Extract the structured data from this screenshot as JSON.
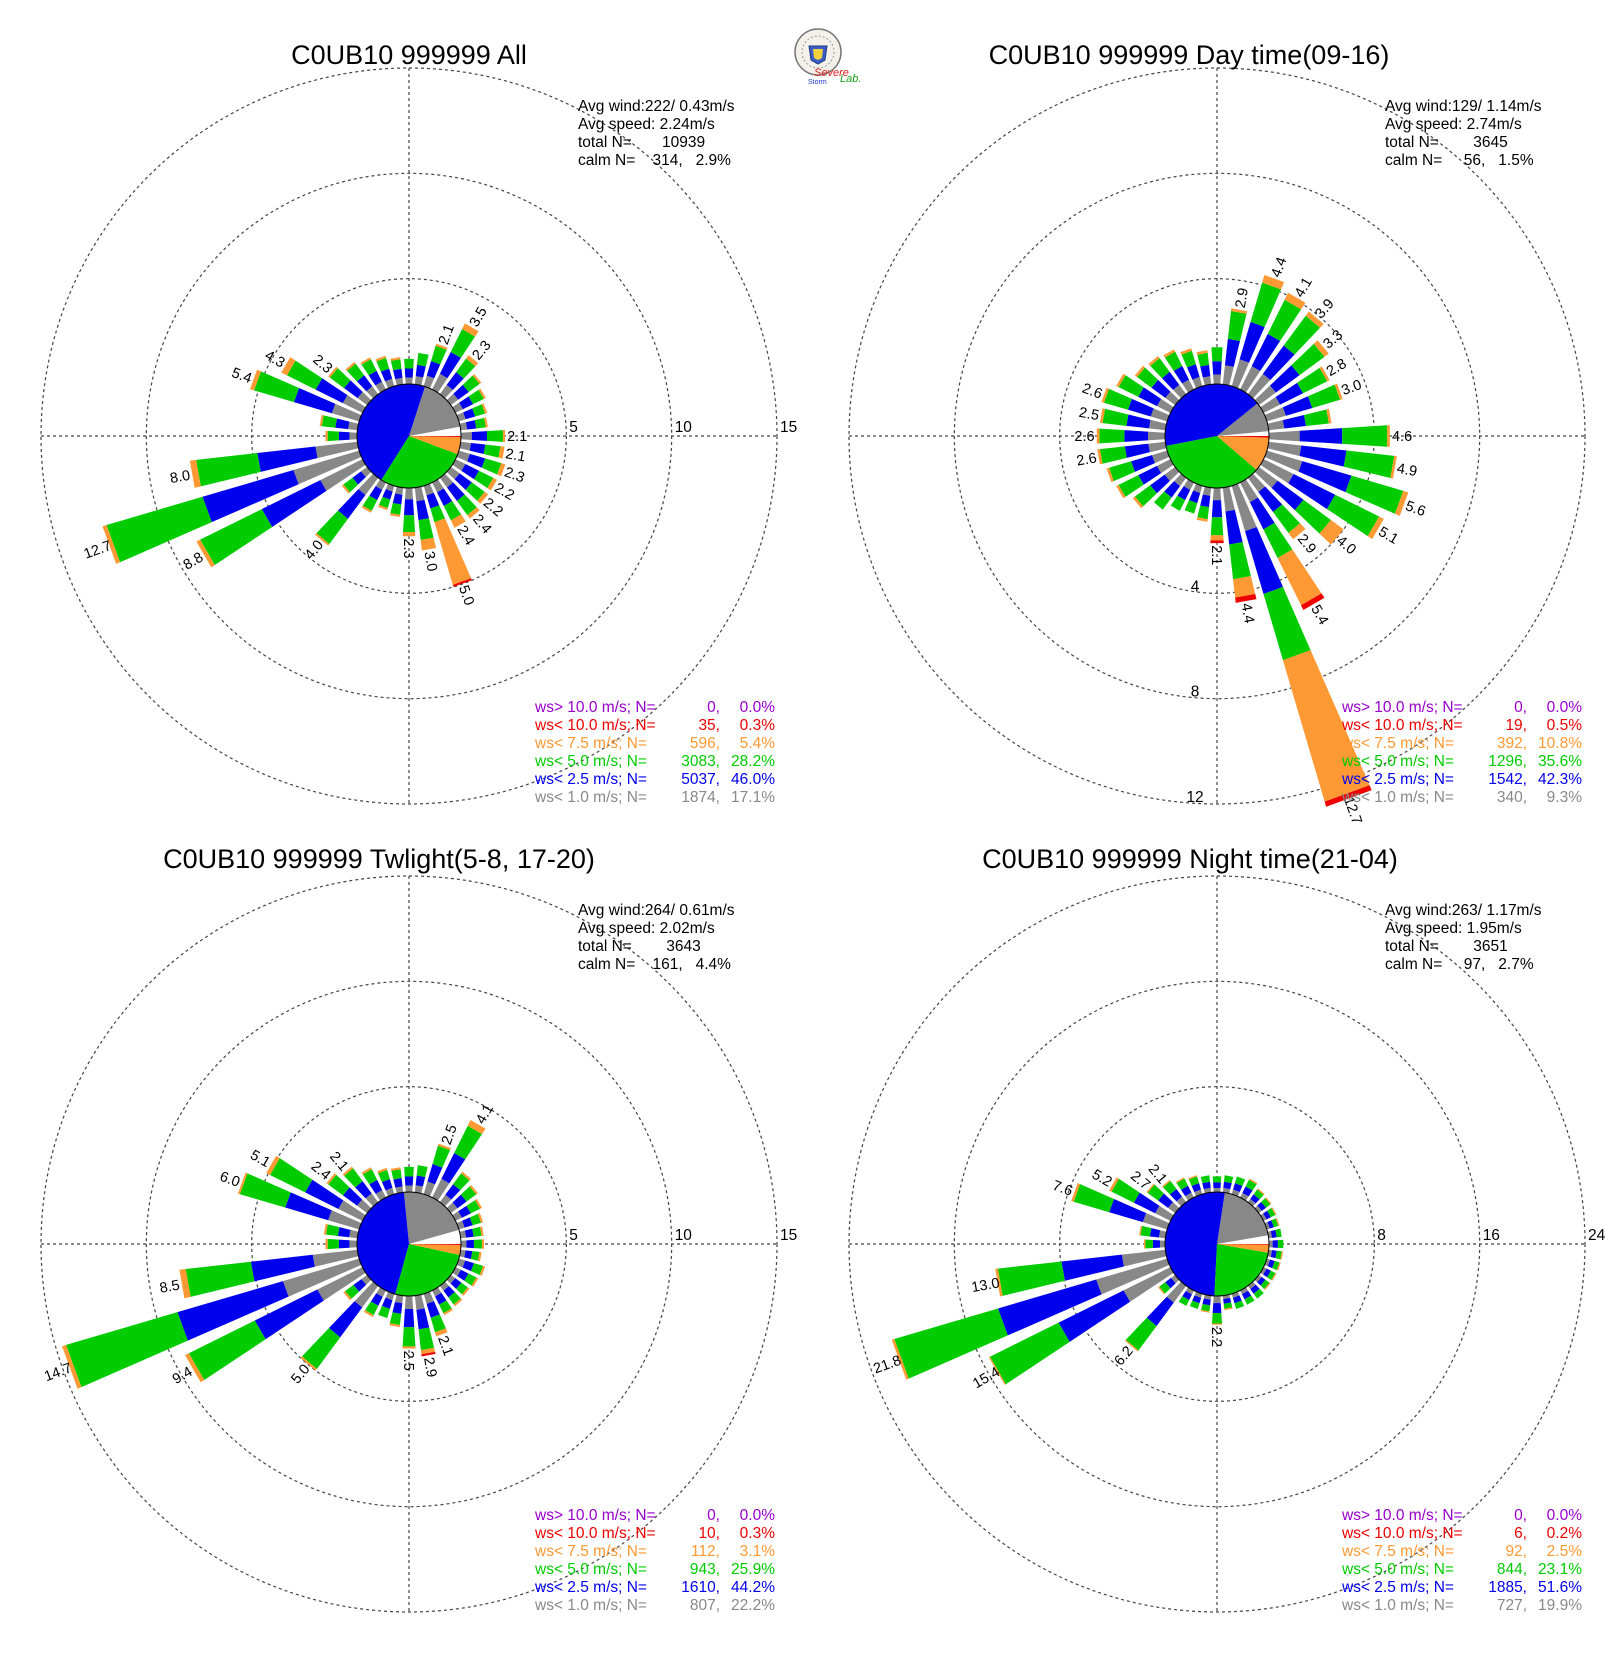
{
  "logo": {
    "text_top": "Severe",
    "text_mid": "Storm",
    "text_right": "Lab."
  },
  "colors": {
    "calm_white": "#ffffff",
    "lt1": "#888888",
    "lt2_5": "#0000ee",
    "lt5": "#00cc00",
    "lt7_5": "#ff9933",
    "lt10": "#ee0000",
    "gt10": "#9900cc",
    "grid": "#444444"
  },
  "chart_data": [
    {
      "type": "wind-rose",
      "title": "C0UB10 999999 All",
      "rings": [
        5,
        10,
        15
      ],
      "ring_label_dir": "east",
      "ring_labels": [
        "5",
        "10",
        "15"
      ],
      "stats": {
        "avg_wind": "Avg wind:222/ 0.43m/s",
        "avg_speed": "Avg speed: 2.24m/s",
        "total_n": "total N=       10939",
        "calm_n": "calm N=    314,   2.9%"
      },
      "legend": [
        {
          "label": "ws> 10.0 m/s; N=",
          "n": "0",
          "pct": "0.0%",
          "color": "gt10"
        },
        {
          "label": "ws< 10.0 m/s; N=",
          "n": "35",
          "pct": "0.3%",
          "color": "lt10"
        },
        {
          "label": "ws<  7.5 m/s; N=",
          "n": "596",
          "pct": "5.4%",
          "color": "lt7_5"
        },
        {
          "label": "ws<  5.0 m/s; N=",
          "n": "3083",
          "pct": "28.2%",
          "color": "lt5"
        },
        {
          "label": "ws<  2.5 m/s; N=",
          "n": "5037",
          "pct": "46.0%",
          "color": "lt2_5"
        },
        {
          "label": "ws<  1.0 m/s; N=",
          "n": "1874",
          "pct": "17.1%",
          "color": "lt1"
        }
      ],
      "pie_percent": {
        "calm": 2.9,
        "lt1": 17.1,
        "lt2_5": 46.0,
        "lt5": 28.2,
        "lt7_5": 5.4,
        "lt10": 0.3,
        "gt10": 0.0
      },
      "directions_deg": [
        0,
        10,
        20,
        30,
        40,
        50,
        60,
        70,
        80,
        90,
        100,
        110,
        120,
        130,
        140,
        150,
        160,
        170,
        180,
        190,
        200,
        210,
        220,
        230,
        240,
        250,
        260,
        270,
        280,
        290,
        300,
        310,
        320,
        330,
        340,
        350
      ],
      "totals": [
        1.2,
        1.5,
        2.1,
        3.5,
        2.3,
        1.8,
        1.6,
        1.4,
        1.3,
        2.1,
        2.1,
        2.3,
        2.2,
        2.2,
        2.4,
        2.4,
        5.0,
        3.0,
        2.3,
        1.4,
        1.2,
        1.6,
        4.0,
        1.5,
        8.8,
        12.7,
        8.0,
        1.5,
        1.8,
        5.4,
        4.3,
        2.3,
        1.9,
        1.7,
        1.5,
        1.3
      ],
      "labels": [
        null,
        null,
        "2.1",
        "3.5",
        "2.3",
        null,
        null,
        null,
        null,
        "2.1",
        "2.1",
        "2.3",
        "2.2",
        "2.2",
        "2.4",
        "2.4",
        "5.0",
        "3.0",
        "2.3",
        null,
        null,
        null,
        "4.0",
        null,
        "8.8",
        "12.7",
        "8.0",
        null,
        null,
        "5.4",
        "4.3",
        "2.3",
        null,
        null,
        null,
        null
      ],
      "warm": [
        0,
        0,
        0.1,
        0.3,
        0.2,
        0.1,
        0.1,
        0.1,
        0.1,
        0.1,
        0.2,
        0.2,
        0.2,
        0.2,
        0.2,
        0.4,
        3.1,
        0.5,
        0.2,
        0.1,
        0.1,
        0.1,
        0.1,
        0.1,
        0.2,
        0.2,
        0.3,
        0.1,
        0.1,
        0.2,
        0.3,
        0.1,
        0.1,
        0.1,
        0.1,
        0.1
      ],
      "red": [
        0,
        0,
        0,
        0,
        0,
        0,
        0,
        0,
        0,
        0,
        0,
        0,
        0,
        0,
        0,
        0,
        0.1,
        0,
        0,
        0,
        0,
        0,
        0,
        0,
        0,
        0,
        0,
        0,
        0,
        0,
        0,
        0,
        0,
        0,
        0,
        0
      ]
    },
    {
      "type": "wind-rose",
      "title": "C0UB10 999999 Day time(09-16)",
      "rings": [
        4,
        8,
        12
      ],
      "ring_label_dir": "south",
      "ring_labels": [
        "4",
        "8",
        "12"
      ],
      "stats": {
        "avg_wind": "Avg wind:129/ 1.14m/s",
        "avg_speed": "Avg speed: 2.74m/s",
        "total_n": "total N=        3645",
        "calm_n": "calm N=     56,   1.5%"
      },
      "legend": [
        {
          "label": "ws> 10.0 m/s; N=",
          "n": "0",
          "pct": "0.0%",
          "color": "gt10"
        },
        {
          "label": "ws< 10.0 m/s; N=",
          "n": "19",
          "pct": "0.5%",
          "color": "lt10"
        },
        {
          "label": "ws<  7.5 m/s; N=",
          "n": "392",
          "pct": "10.8%",
          "color": "lt7_5"
        },
        {
          "label": "ws<  5.0 m/s; N=",
          "n": "1296",
          "pct": "35.6%",
          "color": "lt5"
        },
        {
          "label": "ws<  2.5 m/s; N=",
          "n": "1542",
          "pct": "42.3%",
          "color": "lt2_5"
        },
        {
          "label": "ws<  1.0 m/s; N=",
          "n": "340",
          "pct": "9.3%",
          "color": "lt1"
        }
      ],
      "pie_percent": {
        "calm": 1.5,
        "lt1": 9.3,
        "lt2_5": 42.3,
        "lt5": 35.6,
        "lt7_5": 10.8,
        "lt10": 0.5,
        "gt10": 0.0
      },
      "directions_deg": [
        0,
        10,
        20,
        30,
        40,
        50,
        60,
        70,
        80,
        90,
        100,
        110,
        120,
        130,
        140,
        150,
        160,
        170,
        180,
        190,
        200,
        210,
        220,
        230,
        240,
        250,
        260,
        270,
        280,
        290,
        300,
        310,
        320,
        330,
        340,
        350
      ],
      "totals": [
        1.4,
        2.9,
        4.4,
        4.1,
        3.9,
        3.3,
        2.8,
        3.0,
        2.4,
        4.6,
        4.9,
        5.6,
        5.1,
        4.0,
        2.9,
        5.4,
        12.7,
        4.4,
        2.1,
        1.3,
        1.1,
        1.2,
        1.5,
        2.0,
        2.3,
        2.4,
        2.6,
        2.6,
        2.5,
        2.6,
        2.3,
        1.9,
        1.8,
        1.7,
        1.5,
        1.3
      ],
      "labels": [
        null,
        "2.9",
        "4.4",
        "4.1",
        "3.9",
        "3.3",
        "2.8",
        "3.0",
        null,
        "4.6",
        "4.9",
        "5.6",
        "5.1",
        "4.0",
        "2.9",
        "5.4",
        "12.7",
        "4.4",
        "2.1",
        null,
        null,
        null,
        null,
        null,
        null,
        null,
        "2.6",
        "2.6",
        "2.5",
        "2.6",
        null,
        null,
        null,
        null,
        null,
        null
      ],
      "warm": [
        0,
        0.1,
        0.3,
        0.3,
        0.2,
        0.2,
        0.1,
        0.1,
        0.1,
        0.1,
        0.1,
        0.2,
        0.2,
        0.6,
        0.3,
        2.0,
        5.6,
        0.7,
        0.2,
        0.1,
        0,
        0,
        0,
        0.1,
        0.1,
        0.1,
        0.1,
        0.1,
        0.1,
        0.1,
        0.1,
        0.1,
        0.1,
        0.1,
        0.1,
        0.1
      ],
      "red": [
        0,
        0,
        0,
        0,
        0,
        0,
        0,
        0,
        0,
        0,
        0,
        0,
        0,
        0,
        0,
        0.2,
        0.2,
        0.2,
        0.1,
        0,
        0,
        0,
        0,
        0,
        0,
        0,
        0,
        0,
        0,
        0,
        0,
        0,
        0,
        0,
        0,
        0
      ]
    },
    {
      "type": "wind-rose",
      "title": "C0UB10 999999 Twlight(5-8, 17-20)",
      "rings": [
        5,
        10,
        15
      ],
      "ring_label_dir": "east",
      "ring_labels": [
        "5",
        "10",
        "15"
      ],
      "stats": {
        "avg_wind": "Avg wind:264/ 0.61m/s",
        "avg_speed": "Avg speed: 2.02m/s",
        "total_n": "total N=        3643",
        "calm_n": "calm N=    161,   4.4%"
      },
      "legend": [
        {
          "label": "ws> 10.0 m/s; N=",
          "n": "0",
          "pct": "0.0%",
          "color": "gt10"
        },
        {
          "label": "ws< 10.0 m/s; N=",
          "n": "10",
          "pct": "0.3%",
          "color": "lt10"
        },
        {
          "label": "ws<  7.5 m/s; N=",
          "n": "112",
          "pct": "3.1%",
          "color": "lt7_5"
        },
        {
          "label": "ws<  5.0 m/s; N=",
          "n": "943",
          "pct": "25.9%",
          "color": "lt5"
        },
        {
          "label": "ws<  2.5 m/s; N=",
          "n": "1610",
          "pct": "44.2%",
          "color": "lt2_5"
        },
        {
          "label": "ws<  1.0 m/s; N=",
          "n": "807",
          "pct": "22.2%",
          "color": "lt1"
        }
      ],
      "pie_percent": {
        "calm": 4.4,
        "lt1": 22.2,
        "lt2_5": 44.2,
        "lt5": 25.9,
        "lt7_5": 3.1,
        "lt10": 0.3,
        "gt10": 0.0
      },
      "directions_deg": [
        0,
        10,
        20,
        30,
        40,
        50,
        60,
        70,
        80,
        90,
        100,
        110,
        120,
        130,
        140,
        150,
        160,
        170,
        180,
        190,
        200,
        210,
        220,
        230,
        240,
        250,
        260,
        270,
        280,
        290,
        300,
        310,
        320,
        330,
        340,
        350
      ],
      "totals": [
        1.2,
        1.3,
        2.5,
        4.1,
        1.8,
        1.6,
        1.4,
        1.2,
        1.1,
        1.1,
        1.0,
        1.3,
        1.2,
        1.1,
        1.2,
        1.3,
        2.1,
        2.9,
        2.5,
        1.5,
        1.2,
        1.4,
        5.0,
        1.4,
        9.4,
        14.7,
        8.5,
        1.5,
        1.6,
        6.0,
        5.1,
        2.4,
        2.1,
        1.6,
        1.3,
        1.2
      ],
      "labels": [
        null,
        null,
        "2.5",
        "4.1",
        null,
        null,
        null,
        null,
        null,
        null,
        null,
        null,
        null,
        null,
        null,
        null,
        "2.1",
        "2.9",
        "2.5",
        null,
        null,
        null,
        "5.0",
        null,
        "9.4",
        "14.7",
        "8.5",
        null,
        null,
        "6.0",
        "5.1",
        "2.4",
        "2.1",
        null,
        null,
        null
      ],
      "warm": [
        0,
        0,
        0.1,
        0.3,
        0.1,
        0.1,
        0.1,
        0.1,
        0.1,
        0.1,
        0.1,
        0.1,
        0.1,
        0.1,
        0.1,
        0.1,
        0.2,
        0.2,
        0.1,
        0.1,
        0,
        0.1,
        0.1,
        0.1,
        0.2,
        0.2,
        0.3,
        0.1,
        0.1,
        0.1,
        0.2,
        0.1,
        0.1,
        0.1,
        0.1,
        0.1
      ],
      "red": [
        0,
        0,
        0,
        0,
        0,
        0,
        0,
        0,
        0,
        0,
        0,
        0,
        0,
        0,
        0,
        0,
        0,
        0.1,
        0,
        0,
        0,
        0,
        0,
        0,
        0,
        0,
        0,
        0,
        0,
        0,
        0,
        0,
        0,
        0,
        0,
        0
      ]
    },
    {
      "type": "wind-rose",
      "title": "C0UB10 999999 Night time(21-04)",
      "rings": [
        8,
        16,
        24
      ],
      "ring_label_dir": "east",
      "ring_labels": [
        "8",
        "16",
        "24"
      ],
      "stats": {
        "avg_wind": "Avg wind:263/ 1.17m/s",
        "avg_speed": "Avg speed: 1.95m/s",
        "total_n": "total N=        3651",
        "calm_n": "calm N=     97,   2.7%"
      },
      "legend": [
        {
          "label": "ws> 10.0 m/s; N=",
          "n": "0",
          "pct": "0.0%",
          "color": "gt10"
        },
        {
          "label": "ws< 10.0 m/s; N=",
          "n": "6",
          "pct": "0.2%",
          "color": "lt10"
        },
        {
          "label": "ws<  7.5 m/s; N=",
          "n": "92",
          "pct": "2.5%",
          "color": "lt7_5"
        },
        {
          "label": "ws<  5.0 m/s; N=",
          "n": "844",
          "pct": "23.1%",
          "color": "lt5"
        },
        {
          "label": "ws<  2.5 m/s; N=",
          "n": "1885",
          "pct": "51.6%",
          "color": "lt2_5"
        },
        {
          "label": "ws<  1.0 m/s; N=",
          "n": "727",
          "pct": "19.9%",
          "color": "lt1"
        }
      ],
      "pie_percent": {
        "calm": 2.7,
        "lt1": 19.9,
        "lt2_5": 51.6,
        "lt5": 23.1,
        "lt7_5": 2.5,
        "lt10": 0.2,
        "gt10": 0.0
      },
      "directions_deg": [
        0,
        10,
        20,
        30,
        40,
        50,
        60,
        70,
        80,
        90,
        100,
        110,
        120,
        130,
        140,
        150,
        160,
        170,
        180,
        190,
        200,
        210,
        220,
        230,
        240,
        250,
        260,
        270,
        280,
        290,
        300,
        310,
        320,
        330,
        340,
        350
      ],
      "totals": [
        1.2,
        1.3,
        1.4,
        1.6,
        1.3,
        1.2,
        1.1,
        1.0,
        1.0,
        1.1,
        1.1,
        1.1,
        1.1,
        1.1,
        1.2,
        1.2,
        1.2,
        1.1,
        2.2,
        1.3,
        1.2,
        1.3,
        6.2,
        1.6,
        15.4,
        21.8,
        13.0,
        1.6,
        2.0,
        7.6,
        5.2,
        2.7,
        2.1,
        1.7,
        1.5,
        1.3
      ],
      "labels": [
        null,
        null,
        null,
        null,
        null,
        null,
        null,
        null,
        null,
        null,
        null,
        null,
        null,
        null,
        null,
        null,
        null,
        null,
        "2.2",
        null,
        null,
        null,
        "6.2",
        null,
        "15.4",
        "21.8",
        "13.0",
        null,
        null,
        "7.6",
        "5.2",
        "2.7",
        "2.1",
        null,
        null,
        null
      ],
      "warm": [
        0,
        0,
        0,
        0.1,
        0.1,
        0.1,
        0.1,
        0.1,
        0,
        0,
        0.1,
        0.1,
        0.1,
        0.1,
        0,
        0,
        0,
        0.1,
        0.1,
        0.1,
        0,
        0,
        0.1,
        0.1,
        0.1,
        0.2,
        0.2,
        0.1,
        0.1,
        0.2,
        0.2,
        0.1,
        0.1,
        0.1,
        0.1,
        0
      ],
      "red": [
        0,
        0,
        0,
        0,
        0,
        0,
        0,
        0,
        0,
        0,
        0,
        0,
        0,
        0,
        0,
        0,
        0,
        0,
        0,
        0,
        0,
        0,
        0,
        0,
        0,
        0,
        0,
        0,
        0,
        0,
        0,
        0,
        0,
        0,
        0,
        0
      ]
    }
  ]
}
